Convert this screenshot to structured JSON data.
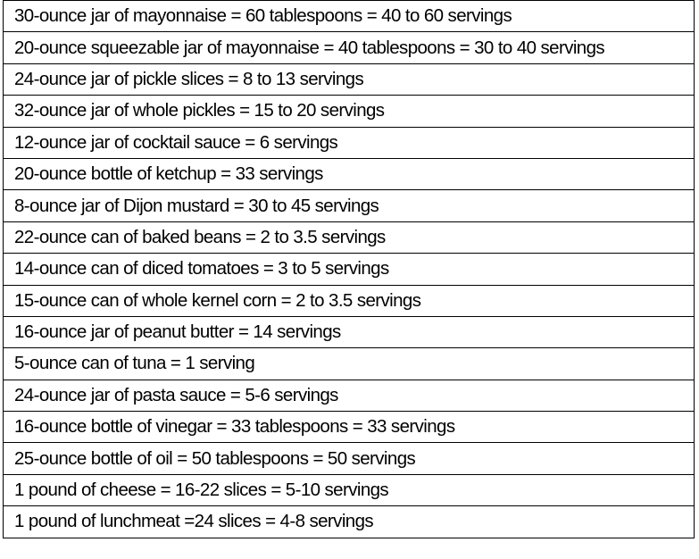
{
  "rows": [
    "30-ounce jar of mayonnaise = 60 tablespoons = 40 to 60 servings",
    "20-ounce squeezable jar of mayonnaise = 40 tablespoons = 30 to 40 servings",
    "24-ounce jar of pickle slices = 8 to 13 servings",
    "32-ounce jar of whole pickles = 15 to 20 servings",
    "12-ounce jar of cocktail sauce = 6 servings",
    "20-ounce bottle of ketchup = 33 servings",
    "8-ounce jar of Dijon mustard = 30 to 45 servings",
    "22-ounce can of baked beans = 2 to 3.5 servings",
    "14-ounce can of diced tomatoes = 3 to 5 servings",
    "15-ounce can of whole kernel corn = 2 to 3.5 servings",
    "16-ounce jar of peanut butter = 14 servings",
    "5-ounce can of tuna = 1 serving",
    "24-ounce jar of pasta sauce = 5-6 servings",
    "16-ounce bottle of vinegar = 33 tablespoons = 33 servings",
    "25-ounce bottle of oil = 50 tablespoons = 50 servings",
    "1 pound of cheese = 16-22 slices = 5-10 servings",
    "1 pound of lunchmeat =24 slices = 4-8 servings"
  ]
}
